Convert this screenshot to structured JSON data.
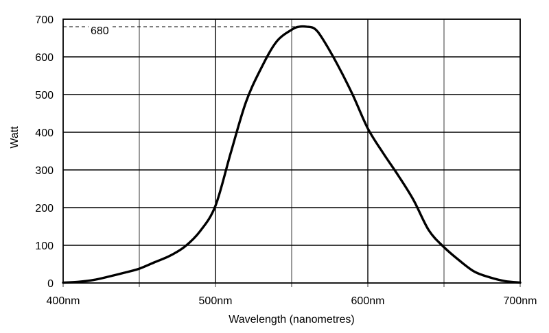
{
  "chart_data": {
    "type": "line",
    "xlabel": "Wavelength (nanometres)",
    "ylabel": "Watt",
    "xlim": [
      400,
      700
    ],
    "ylim": [
      0,
      700
    ],
    "x_tick_values": [
      400,
      500,
      600,
      700
    ],
    "x_tick_labels": [
      "400nm",
      "500nm",
      "600nm",
      "700nm"
    ],
    "x_grid_values": [
      400,
      450,
      500,
      550,
      600,
      650,
      700
    ],
    "y_ticks": [
      0,
      100,
      200,
      300,
      400,
      500,
      600,
      700
    ],
    "grid": true,
    "annotation": {
      "label": "680",
      "value": 680,
      "x": 555,
      "style": "dashed horizontal reference line"
    },
    "series": [
      {
        "x": [
          400,
          410,
          420,
          430,
          440,
          450,
          460,
          470,
          480,
          490,
          500,
          510,
          520,
          530,
          540,
          550,
          555,
          560,
          565,
          570,
          580,
          590,
          600,
          610,
          620,
          630,
          640,
          650,
          660,
          670,
          680,
          690,
          700
        ],
        "y": [
          1,
          3,
          8,
          17,
          27,
          38,
          55,
          72,
          97,
          138,
          205,
          345,
          480,
          570,
          640,
          672,
          680,
          680,
          675,
          650,
          580,
          500,
          410,
          345,
          285,
          220,
          140,
          95,
          60,
          30,
          15,
          5,
          1
        ]
      }
    ]
  }
}
